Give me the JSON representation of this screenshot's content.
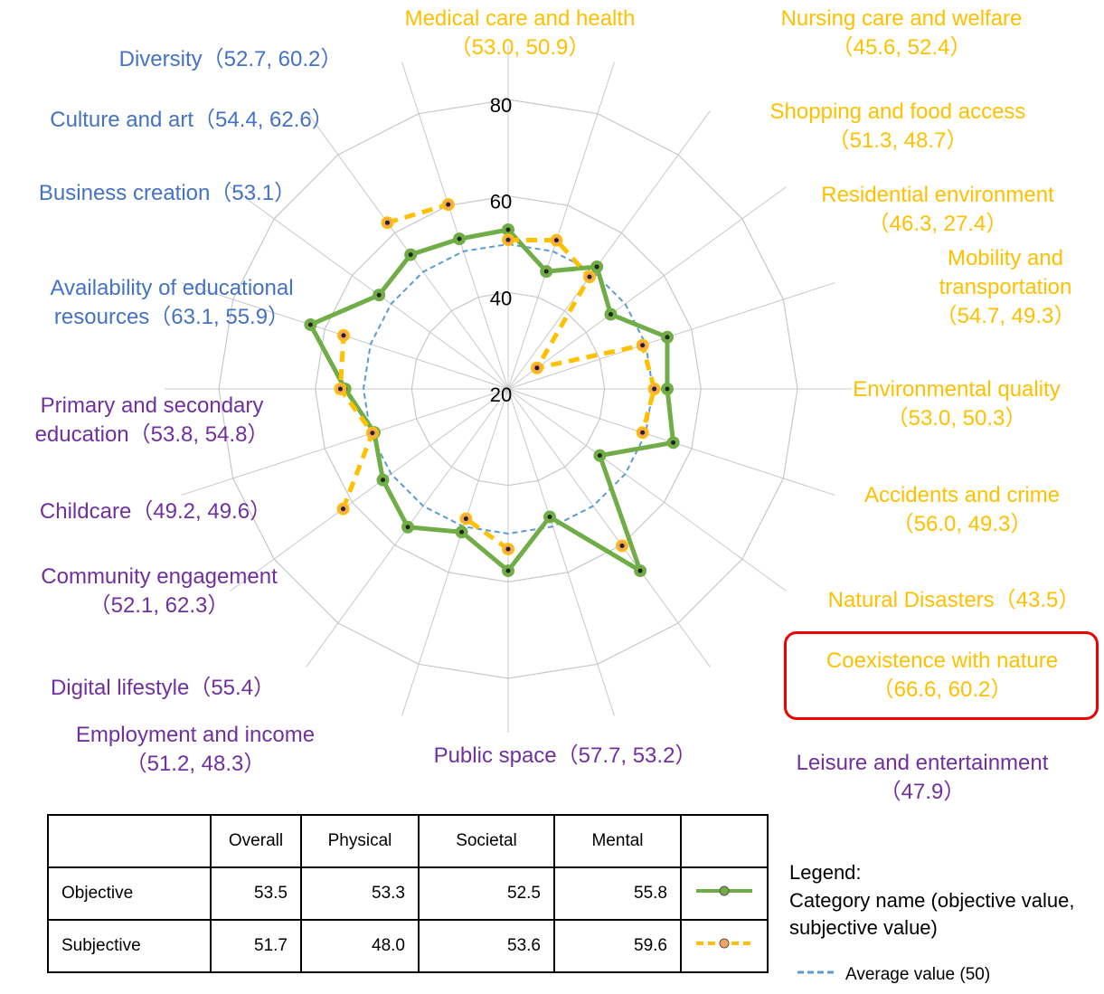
{
  "chart_data": {
    "type": "radar",
    "categories": [
      "Medical care and health",
      "Nursing care and welfare",
      "Shopping and food access",
      "Residential environment",
      "Mobility and transportation",
      "Environmental quality",
      "Accidents and crime",
      "Natural Disasters",
      "Coexistence with nature",
      "Leisure and entertainment",
      "Public space",
      "Employment and income",
      "Digital lifestyle",
      "Community engagement",
      "Childcare",
      "Primary and secondary education",
      "Availability of educational resources",
      "Business creation",
      "Culture and art",
      "Diversity"
    ],
    "category_value_labels": [
      "（53.0, 50.9）",
      "（45.6, 52.4）",
      "（51.3, 48.7）",
      "（46.3, 27.4）",
      "（54.7, 49.3）",
      "（53.0, 50.3）",
      "（56.0, 49.3）",
      "（43.5）",
      "（66.6, 60.2）",
      "（47.9）",
      "（57.7, 53.2）",
      "（51.2, 48.3）",
      "（55.4）",
      "（52.1, 62.3）",
      "（49.2, 49.6）",
      "（53.8, 54.8）",
      "（63.1, 55.9）",
      "（53.1）",
      "（54.4, 62.6）",
      "（52.7, 60.2）"
    ],
    "label_colors": [
      "#ffc000",
      "#ffc000",
      "#ffc000",
      "#ffc000",
      "#ffc000",
      "#ffc000",
      "#ffc000",
      "#ffc000",
      "#ffc000",
      "#7030a0",
      "#7030a0",
      "#7030a0",
      "#7030a0",
      "#7030a0",
      "#7030a0",
      "#7030a0",
      "#4472c4",
      "#4472c4",
      "#4472c4",
      "#4472c4"
    ],
    "series": [
      {
        "name": "Objective",
        "color": "#70ad47",
        "values": [
          53.0,
          45.6,
          51.3,
          46.3,
          54.7,
          53.0,
          56.0,
          43.5,
          66.6,
          47.9,
          57.7,
          51.2,
          55.4,
          52.1,
          49.2,
          53.8,
          63.1,
          53.1,
          54.4,
          52.7
        ]
      },
      {
        "name": "Subjective",
        "color": "#ffc000",
        "values": [
          50.9,
          52.4,
          48.7,
          27.4,
          49.3,
          50.3,
          49.3,
          null,
          60.2,
          null,
          53.2,
          48.3,
          null,
          62.3,
          49.6,
          54.8,
          55.9,
          null,
          62.6,
          60.2
        ]
      }
    ],
    "average": {
      "label": "Average value (50)",
      "value": 50,
      "color": "#5b9bd5"
    },
    "ylim": [
      20,
      80
    ],
    "yticks": [
      20,
      40,
      60,
      80
    ],
    "grid": true,
    "legend_title": "Legend:",
    "legend_text": "Category name (objective value, subjective value)"
  },
  "table": {
    "header": [
      "",
      "Overall",
      "Physical",
      "Societal",
      "Mental"
    ],
    "rows": [
      [
        "53.5",
        "53.3",
        "52.5",
        "55.8"
      ],
      [
        "51.7",
        "48.0",
        "53.6",
        "59.6"
      ]
    ]
  }
}
